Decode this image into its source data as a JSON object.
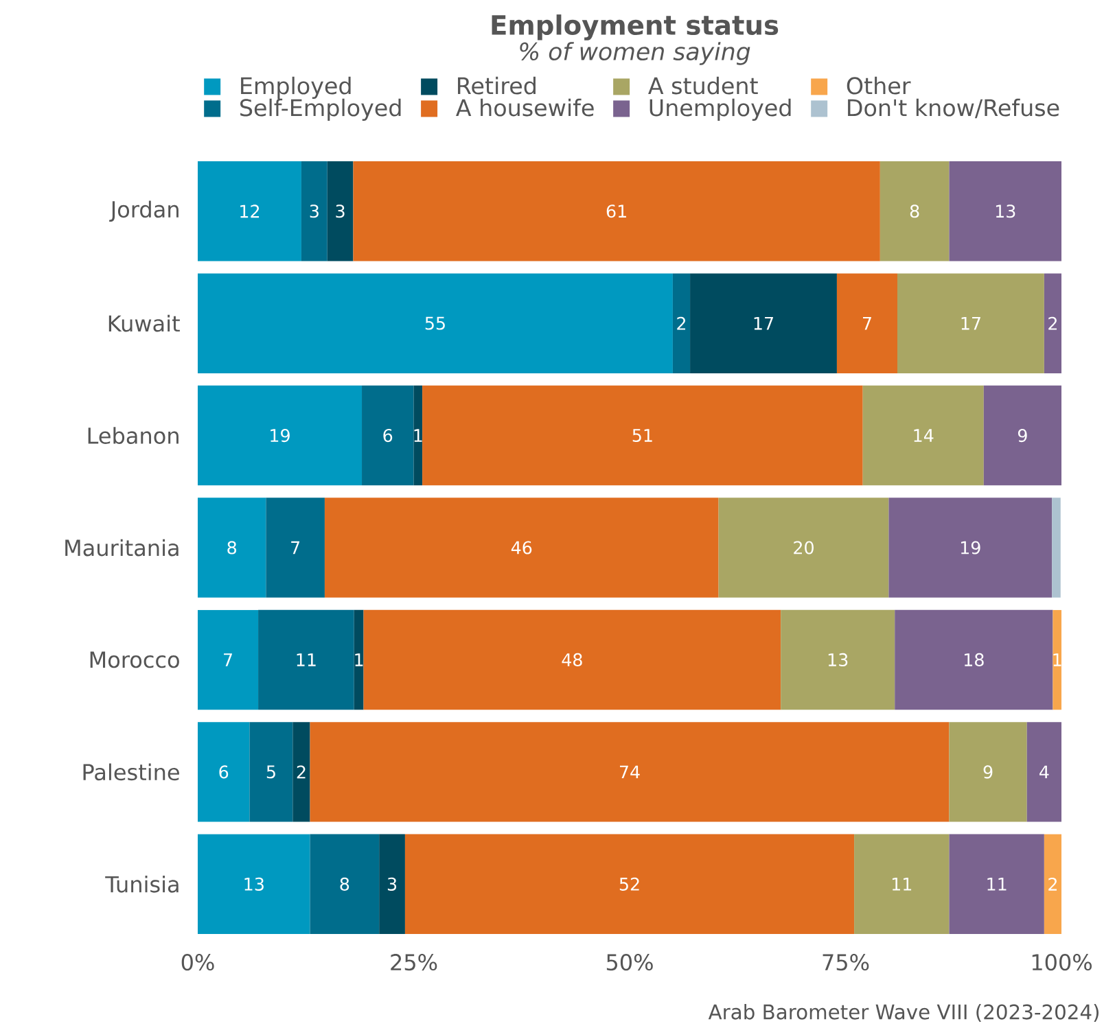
{
  "chart_data": {
    "type": "bar",
    "orientation": "horizontal",
    "stacked": true,
    "title": "Employment status",
    "subtitle": "*% of women saying*",
    "categories": [
      "Jordan",
      "Kuwait",
      "Lebanon",
      "Mauritania",
      "Morocco",
      "Palestine",
      "Tunisia"
    ],
    "series": [
      {
        "name": "Employed",
        "color": "#0099c0",
        "values": [
          12,
          55,
          19,
          7.9,
          7,
          6,
          13
        ],
        "value_labels": [
          "12",
          "55",
          "19",
          "8",
          "7",
          "6",
          "13"
        ]
      },
      {
        "name": "Self-Employed",
        "color": "#006d8c",
        "values": [
          3,
          2,
          6,
          6.8,
          11.1,
          5,
          8
        ],
        "value_labels": [
          "3",
          "2",
          "6",
          "7",
          "11",
          "5",
          "8"
        ]
      },
      {
        "name": "Retired",
        "color": "#004b5f",
        "values": [
          3,
          17,
          1,
          null,
          1.1,
          2,
          3
        ],
        "value_labels": [
          "3",
          "17",
          "1",
          null,
          "1",
          "2",
          "3"
        ]
      },
      {
        "name": "A housewife",
        "color": "#e06d20",
        "values": [
          61,
          7,
          51,
          45.6,
          48.3,
          74,
          52
        ],
        "value_labels": [
          "61",
          "7",
          "51",
          "46",
          "48",
          "74",
          "52"
        ]
      },
      {
        "name": "A student",
        "color": "#a9a664",
        "values": [
          8,
          17,
          14,
          19.7,
          13.2,
          9,
          11
        ],
        "value_labels": [
          "8",
          "17",
          "14",
          "20",
          "13",
          "9",
          "11"
        ]
      },
      {
        "name": "Unemployed",
        "color": "#7a638f",
        "values": [
          13,
          2,
          9,
          18.9,
          18.3,
          4,
          11
        ],
        "value_labels": [
          "13",
          "2",
          "9",
          "19",
          "18",
          "4",
          "11"
        ]
      },
      {
        "name": "Other",
        "color": "#f8a64c",
        "values": [
          null,
          null,
          null,
          null,
          1.0,
          null,
          2
        ],
        "value_labels": [
          null,
          null,
          null,
          null,
          "1",
          null,
          "2"
        ]
      },
      {
        "name": "Don't know/Refuse",
        "color": "#adc2d0",
        "values": [
          null,
          null,
          null,
          1.0,
          null,
          null,
          null
        ],
        "value_labels": [
          null,
          null,
          null,
          null,
          null,
          null,
          null
        ]
      }
    ],
    "xlim": [
      0,
      100
    ],
    "xticks": [
      {
        "value": 0,
        "label": "0%"
      },
      {
        "value": 25,
        "label": "25%"
      },
      {
        "value": 50,
        "label": "50%"
      },
      {
        "value": 75,
        "label": "75%"
      },
      {
        "value": 100,
        "label": "100%"
      }
    ],
    "legend": "top",
    "grid": false,
    "annotations": [
      "Arab Barometer Wave VIII (2023-2024)"
    ]
  }
}
